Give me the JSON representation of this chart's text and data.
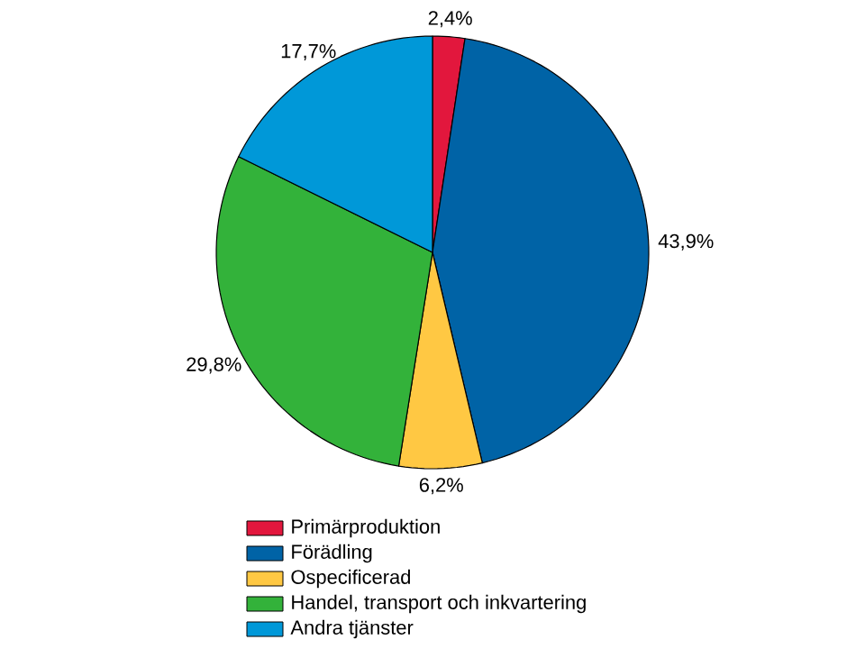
{
  "chart_data": {
    "type": "pie",
    "categories": [
      "Primärproduktion",
      "Förädling",
      "Ospecificerad",
      "Handel, transport och inkvartering",
      "Andra tjänster"
    ],
    "values": [
      2.4,
      43.9,
      6.2,
      29.8,
      17.7
    ],
    "value_labels": [
      "2,4%",
      "43,9%",
      "6,2%",
      "29,8%",
      "17,7%"
    ],
    "colors": [
      "#e2173d",
      "#0063a6",
      "#ffc843",
      "#33b23a",
      "#0098d8"
    ],
    "legend": "bottom"
  }
}
